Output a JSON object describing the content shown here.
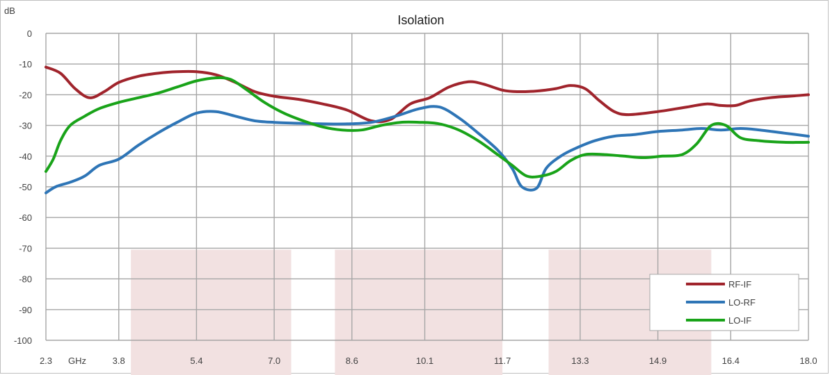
{
  "chart_data": {
    "type": "line",
    "title": "Isolation",
    "ylabel": "dB",
    "xlabel": "GHz",
    "xlim": [
      2.3,
      18.0
    ],
    "ylim": [
      -100,
      0
    ],
    "x_ticks": [
      2.3,
      3.8,
      5.4,
      7.0,
      8.6,
      10.1,
      11.7,
      13.3,
      14.9,
      16.4,
      18.0
    ],
    "x_tick_labels": [
      "2.3",
      "3.8",
      "5.4",
      "7.0",
      "8.6",
      "10.1",
      "11.7",
      "13.3",
      "14.9",
      "16.4",
      "18.0"
    ],
    "y_ticks": [
      0,
      -10,
      -20,
      -30,
      -40,
      -50,
      -60,
      -70,
      -80,
      -90,
      -100
    ],
    "y_tick_labels": [
      "0",
      "-10",
      "-20",
      "-30",
      "-40",
      "-50",
      "-60",
      "-70",
      "-80",
      "-90",
      "-100"
    ],
    "grid": true,
    "legend_position": "bottom-right",
    "bands": [
      {
        "x": [
          4.05,
          7.35
        ],
        "y": [
          -100,
          -70.5
        ],
        "color": "#f2e1e1"
      },
      {
        "x": [
          8.25,
          11.7
        ],
        "y": [
          -100,
          -70.5
        ],
        "color": "#f2e1e1"
      },
      {
        "x": [
          12.65,
          16.0
        ],
        "y": [
          -100,
          -70.5
        ],
        "color": "#f2e1e1"
      }
    ],
    "series": [
      {
        "name": "RF-IF",
        "color": "#a0242c",
        "x": [
          2.3,
          2.6,
          2.9,
          3.2,
          3.5,
          3.8,
          4.2,
          4.6,
          5.0,
          5.4,
          5.8,
          6.2,
          6.6,
          7.0,
          7.5,
          8.0,
          8.5,
          9.0,
          9.4,
          9.8,
          10.2,
          10.6,
          11.0,
          11.3,
          11.7,
          12.0,
          12.4,
          12.8,
          13.1,
          13.4,
          13.7,
          14.0,
          14.3,
          14.9,
          15.5,
          15.9,
          16.2,
          16.5,
          16.8,
          17.2,
          17.6,
          18.0
        ],
        "values": [
          -11,
          -13,
          -18,
          -21,
          -19,
          -16,
          -14,
          -13,
          -12.5,
          -12.5,
          -13.5,
          -16,
          -19,
          -20.5,
          -21.5,
          -23,
          -25,
          -28.5,
          -28,
          -23,
          -21,
          -17.5,
          -15.8,
          -16.5,
          -18.5,
          -19,
          -18.8,
          -18,
          -17,
          -18,
          -22,
          -25.5,
          -26.5,
          -25.5,
          -24,
          -23,
          -23.5,
          -23.5,
          -22,
          -21,
          -20.5,
          -20
        ]
      },
      {
        "name": "LO-RF",
        "color": "#2e75b6",
        "x": [
          2.3,
          2.5,
          2.8,
          3.1,
          3.4,
          3.8,
          4.2,
          4.6,
          5.0,
          5.4,
          5.8,
          6.2,
          6.6,
          7.0,
          7.5,
          8.0,
          8.5,
          9.0,
          9.5,
          10.0,
          10.4,
          10.8,
          11.2,
          11.6,
          11.9,
          12.1,
          12.4,
          12.6,
          12.9,
          13.2,
          13.6,
          14.0,
          14.4,
          14.9,
          15.4,
          15.8,
          16.2,
          16.6,
          17.0,
          17.5,
          18.0
        ],
        "values": [
          -52,
          -50,
          -48.5,
          -46.5,
          -43,
          -41,
          -36.5,
          -32.5,
          -29,
          -26,
          -25.5,
          -27,
          -28.5,
          -29,
          -29.3,
          -29.5,
          -29.5,
          -29,
          -27,
          -24.5,
          -24,
          -27.5,
          -32.5,
          -38,
          -44,
          -50,
          -50.5,
          -44,
          -40,
          -37.5,
          -35,
          -33.5,
          -33,
          -32,
          -31.5,
          -31,
          -31.5,
          -31,
          -31.5,
          -32.5,
          -33.5
        ]
      },
      {
        "name": "LO-IF",
        "color": "#19a319",
        "x": [
          2.3,
          2.45,
          2.6,
          2.8,
          3.1,
          3.4,
          3.8,
          4.2,
          4.6,
          5.0,
          5.4,
          5.8,
          6.1,
          6.4,
          6.8,
          7.2,
          7.6,
          8.0,
          8.4,
          8.8,
          9.2,
          9.6,
          10.0,
          10.4,
          10.8,
          11.2,
          11.6,
          11.9,
          12.2,
          12.5,
          12.8,
          13.1,
          13.4,
          13.8,
          14.2,
          14.6,
          15.0,
          15.4,
          15.7,
          16.0,
          16.3,
          16.6,
          17.0,
          17.5,
          18.0
        ],
        "values": [
          -45,
          -41,
          -35,
          -30,
          -27,
          -24.5,
          -22.5,
          -21,
          -19.5,
          -17.5,
          -15.5,
          -14.5,
          -15,
          -18,
          -22.5,
          -26,
          -28.5,
          -30.5,
          -31.5,
          -31.5,
          -30,
          -29,
          -29,
          -29.5,
          -31.5,
          -35,
          -39.5,
          -43,
          -46.5,
          -46.5,
          -45,
          -41.5,
          -39.5,
          -39.5,
          -40,
          -40.5,
          -40,
          -39.5,
          -36,
          -30,
          -30,
          -34,
          -35,
          -35.5,
          -35.5
        ]
      }
    ]
  }
}
